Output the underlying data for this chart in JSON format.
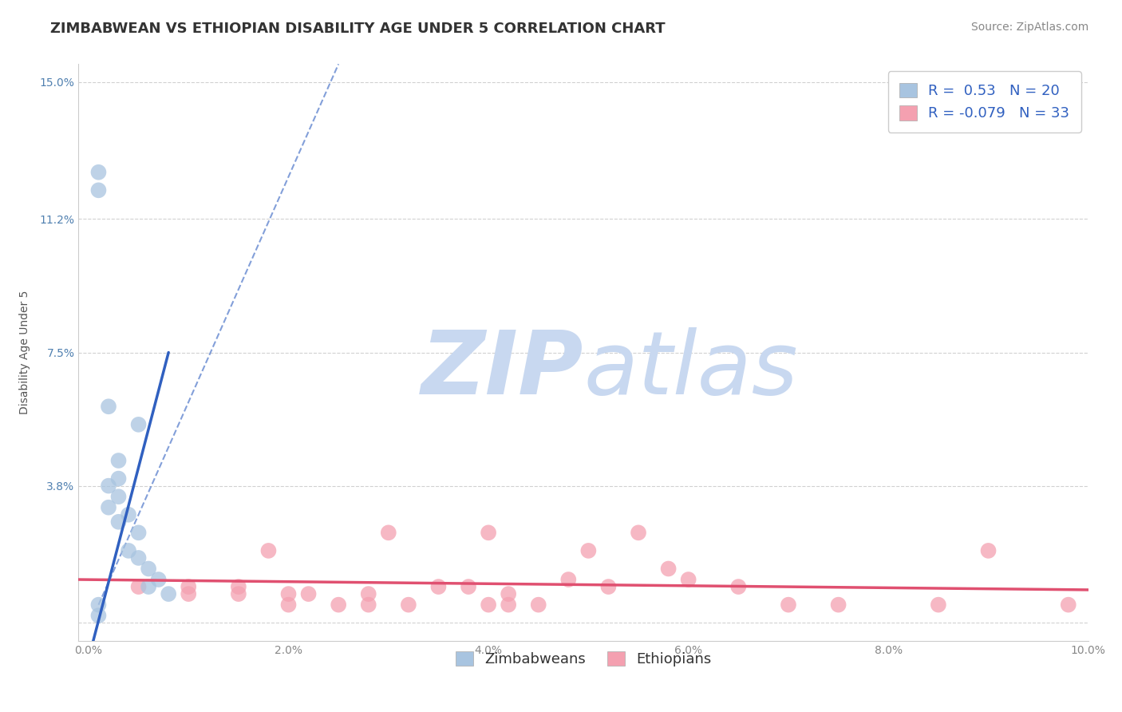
{
  "title": "ZIMBABWEAN VS ETHIOPIAN DISABILITY AGE UNDER 5 CORRELATION CHART",
  "source": "Source: ZipAtlas.com",
  "xlabel": "",
  "ylabel": "Disability Age Under 5",
  "xlim": [
    -0.001,
    0.1
  ],
  "ylim": [
    -0.005,
    0.155
  ],
  "yticks": [
    0.0,
    0.038,
    0.075,
    0.112,
    0.15
  ],
  "ytick_labels": [
    "",
    "3.8%",
    "7.5%",
    "11.2%",
    "15.0%"
  ],
  "xticks": [
    0.0,
    0.02,
    0.04,
    0.06,
    0.08,
    0.1
  ],
  "xtick_labels": [
    "0.0%",
    "2.0%",
    "4.0%",
    "6.0%",
    "8.0%",
    "10.0%"
  ],
  "zim_color": "#a8c4e0",
  "eth_color": "#f4a0b0",
  "zim_line_color": "#3060c0",
  "eth_line_color": "#e05070",
  "R_zim": 0.53,
  "N_zim": 20,
  "R_eth": -0.079,
  "N_eth": 33,
  "background_color": "#ffffff",
  "grid_color": "#cccccc",
  "watermark_color": "#c8d8f0",
  "zim_scatter_x": [
    0.001,
    0.001,
    0.001,
    0.001,
    0.002,
    0.002,
    0.002,
    0.003,
    0.003,
    0.003,
    0.003,
    0.004,
    0.004,
    0.005,
    0.005,
    0.005,
    0.006,
    0.006,
    0.007,
    0.008
  ],
  "zim_scatter_y": [
    0.12,
    0.125,
    0.005,
    0.002,
    0.038,
    0.032,
    0.06,
    0.045,
    0.04,
    0.035,
    0.028,
    0.03,
    0.02,
    0.055,
    0.025,
    0.018,
    0.015,
    0.01,
    0.012,
    0.008
  ],
  "eth_scatter_x": [
    0.005,
    0.01,
    0.01,
    0.015,
    0.015,
    0.018,
    0.02,
    0.02,
    0.022,
    0.025,
    0.028,
    0.028,
    0.03,
    0.032,
    0.035,
    0.038,
    0.04,
    0.04,
    0.042,
    0.042,
    0.045,
    0.048,
    0.05,
    0.052,
    0.055,
    0.058,
    0.06,
    0.065,
    0.07,
    0.075,
    0.085,
    0.09,
    0.098
  ],
  "eth_scatter_y": [
    0.01,
    0.01,
    0.008,
    0.01,
    0.008,
    0.02,
    0.008,
    0.005,
    0.008,
    0.005,
    0.008,
    0.005,
    0.025,
    0.005,
    0.01,
    0.01,
    0.025,
    0.005,
    0.008,
    0.005,
    0.005,
    0.012,
    0.02,
    0.01,
    0.025,
    0.015,
    0.012,
    0.01,
    0.005,
    0.005,
    0.005,
    0.02,
    0.005
  ],
  "title_fontsize": 13,
  "label_fontsize": 10,
  "tick_fontsize": 10,
  "legend_fontsize": 13,
  "source_fontsize": 10
}
